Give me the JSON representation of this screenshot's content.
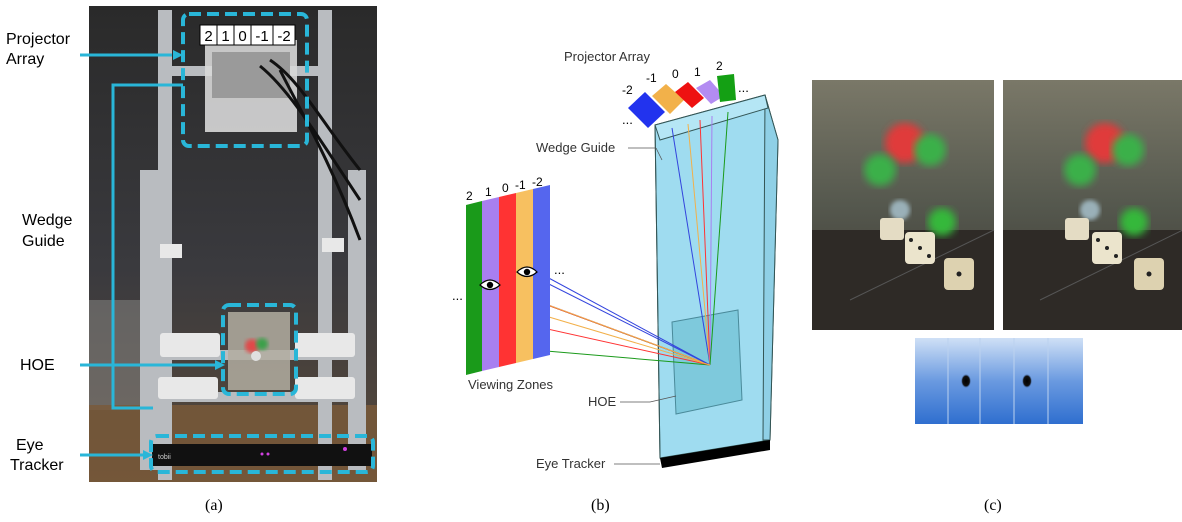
{
  "panel_a": {
    "caption": "(a)",
    "labels": {
      "projector_array_line1": "Projector",
      "projector_array_line2": "Array",
      "wedge_guide_line1": "Wedge",
      "wedge_guide_line2": "Guide",
      "hoe": "HOE",
      "eye_tracker_line1": "Eye",
      "eye_tracker_line2": "Tracker"
    },
    "projector_indices": [
      "2",
      "1",
      "0",
      "-1",
      "-2"
    ],
    "tracker_brand": "tobii",
    "accent_color": "#29b6d8"
  },
  "panel_b": {
    "caption": "(b)",
    "labels": {
      "projector_array": "Projector Array",
      "wedge_guide": "Wedge Guide",
      "viewing_zones": "Viewing Zones",
      "hoe": "HOE",
      "eye_tracker": "Eye Tracker"
    },
    "projector_indices": [
      "-2",
      "-1",
      "0",
      "1",
      "2"
    ],
    "zone_indices": [
      "2",
      "1",
      "0",
      "-1",
      "-2"
    ],
    "ellipsis": "...",
    "colors": {
      "index_2": "#1a9a1a",
      "index_1": "#a87ff0",
      "index_0": "#ff3333",
      "index_m1": "#f7c060",
      "index_m2": "#5566ee",
      "wedge": "#9fdcf0"
    }
  },
  "panel_c": {
    "caption": "(c)"
  }
}
